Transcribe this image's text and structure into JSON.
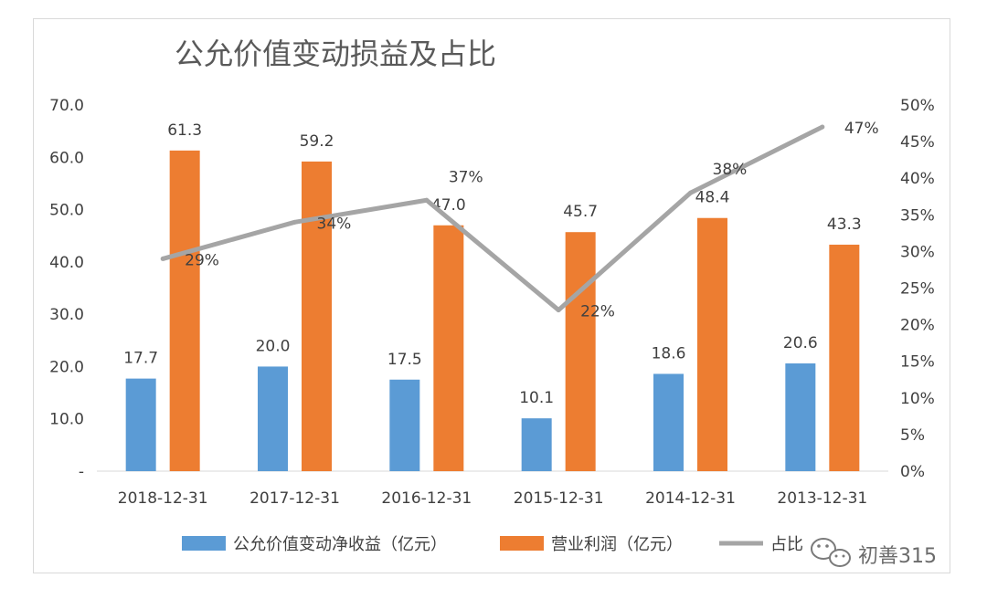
{
  "chart_data": {
    "type": "bar",
    "title": "公允价值变动损益及占比",
    "categories": [
      "2018-12-31",
      "2017-12-31",
      "2016-12-31",
      "2015-12-31",
      "2014-12-31",
      "2013-12-31"
    ],
    "series": [
      {
        "name": "公允价值变动净收益（亿元）",
        "type": "bar",
        "axis": "left",
        "color": "#5b9bd5",
        "values": [
          17.7,
          20.0,
          17.5,
          10.1,
          18.6,
          20.6
        ],
        "labels": [
          "17.7",
          "20.0",
          "17.5",
          "10.1",
          "18.6",
          "20.6"
        ]
      },
      {
        "name": "营业利润（亿元）",
        "type": "bar",
        "axis": "left",
        "color": "#ed7d31",
        "values": [
          61.3,
          59.2,
          47.0,
          45.7,
          48.4,
          43.3
        ],
        "labels": [
          "61.3",
          "59.2",
          "47.0",
          "45.7",
          "48.4",
          "43.3"
        ]
      },
      {
        "name": "占比",
        "type": "line",
        "axis": "right",
        "color": "#a5a5a5",
        "values": [
          29,
          34,
          37,
          22,
          38,
          47
        ],
        "labels": [
          "29%",
          "34%",
          "37%",
          "22%",
          "38%",
          "47%"
        ]
      }
    ],
    "y_left": {
      "min": 0,
      "max": 70,
      "ticks": [
        0,
        10,
        20,
        30,
        40,
        50,
        60,
        70
      ],
      "tick_labels": [
        "-",
        "10.0",
        "20.0",
        "30.0",
        "40.0",
        "50.0",
        "60.0",
        "70.0"
      ]
    },
    "y_right": {
      "min": 0,
      "max": 50,
      "ticks": [
        0,
        5,
        10,
        15,
        20,
        25,
        30,
        35,
        40,
        45,
        50
      ],
      "tick_labels": [
        "0%",
        "5%",
        "10%",
        "15%",
        "20%",
        "25%",
        "30%",
        "35%",
        "40%",
        "45%",
        "50%"
      ]
    },
    "grid": false,
    "legend_position": "bottom"
  },
  "watermark": {
    "text": "初善315",
    "icon": "wechat-icon"
  }
}
